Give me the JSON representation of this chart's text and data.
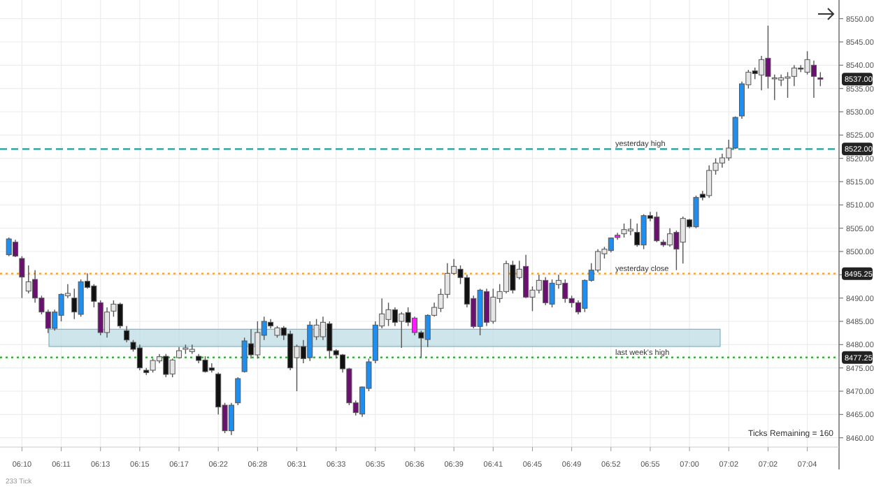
{
  "chart_data": {
    "type": "candlestick",
    "categories": [
      null,
      null,
      "06:10",
      null,
      null,
      null,
      null,
      null,
      "06:11",
      null,
      null,
      null,
      null,
      null,
      "06:13",
      null,
      null,
      null,
      null,
      null,
      "06:15",
      null,
      null,
      null,
      null,
      null,
      "06:17",
      null,
      null,
      null,
      null,
      null,
      "06:22",
      null,
      null,
      null,
      null,
      null,
      "06:28",
      null,
      null,
      null,
      null,
      null,
      "06:31",
      null,
      null,
      null,
      null,
      null,
      "06:33",
      null,
      null,
      null,
      null,
      null,
      "06:35",
      null,
      null,
      null,
      null,
      null,
      "06:36",
      null,
      null,
      null,
      null,
      null,
      "06:39",
      null,
      null,
      null,
      null,
      null,
      "06:41",
      null,
      null,
      null,
      null,
      null,
      "06:45",
      null,
      null,
      null,
      null,
      null,
      "06:49",
      null,
      null,
      null,
      null,
      null,
      "06:52",
      null,
      null,
      null,
      null,
      null,
      "06:55",
      null,
      null,
      null,
      null,
      null,
      "07:00",
      null,
      null,
      null,
      null,
      null,
      "07:02",
      null,
      null,
      null,
      null,
      null,
      "07:02",
      null,
      null,
      null,
      null,
      null,
      "07:04",
      null,
      null
    ],
    "ohlc": [
      [
        8499.3,
        8503,
        8499,
        8502.7
      ],
      [
        8502,
        8502.5,
        8498.8,
        8499
      ],
      [
        8498.5,
        8499,
        8490,
        8494.5
      ],
      [
        8491.5,
        8497,
        8491,
        8493.5
      ],
      [
        8494,
        8496,
        8489,
        8490
      ],
      [
        8490,
        8490.5,
        8486.5,
        8487
      ],
      [
        8487,
        8487.5,
        8482.5,
        8483.5
      ],
      [
        8483.5,
        8487.5,
        8483,
        8487
      ],
      [
        8486.3,
        8491,
        8485,
        8490.8
      ],
      [
        8490.5,
        8493,
        8490,
        8491
      ],
      [
        8490,
        8492,
        8485.5,
        8487
      ],
      [
        8486.5,
        8494,
        8486,
        8493.5
      ],
      [
        8493.6,
        8495.3,
        8492,
        8492.3
      ],
      [
        8492.6,
        8493,
        8488,
        8489.3
      ],
      [
        8489,
        8489.5,
        8482,
        8482.6
      ],
      [
        8482.6,
        8488,
        8481.5,
        8487
      ],
      [
        8487.2,
        8489.5,
        8486,
        8488.7
      ],
      [
        8488.7,
        8489,
        8483.5,
        8484
      ],
      [
        8483,
        8484,
        8480.5,
        8481
      ],
      [
        8480.5,
        8481,
        8478.5,
        8479
      ],
      [
        8479.3,
        8480,
        8474.5,
        8475
      ],
      [
        8474.5,
        8475,
        8473.5,
        8474
      ],
      [
        8474.5,
        8477,
        8474,
        8476.6
      ],
      [
        8476.5,
        8478,
        8476,
        8477.4
      ],
      [
        8477.5,
        8478,
        8473,
        8473.6
      ],
      [
        8473.7,
        8477,
        8473,
        8476.7
      ],
      [
        8477.2,
        8479.5,
        8477,
        8478.7
      ],
      [
        8479,
        8480,
        8478,
        8479.3
      ],
      [
        8478.5,
        8480,
        8478,
        8479
      ],
      [
        8477.5,
        8478,
        8476,
        8476.6
      ],
      [
        8476.7,
        8477.5,
        8474,
        8474.2
      ],
      [
        8475,
        8476,
        8474,
        8474.5
      ],
      [
        8473.7,
        8474,
        8465,
        8466.6
      ],
      [
        8467,
        8467.5,
        8461,
        8461.5
      ],
      [
        8461.5,
        8467.5,
        8460.6,
        8467
      ],
      [
        8467.5,
        8473,
        8467,
        8472.7
      ],
      [
        8474.2,
        8481.5,
        8474,
        8480.8
      ],
      [
        8480.2,
        8483.3,
        8477,
        8477.8
      ],
      [
        8477.8,
        8485,
        8477,
        8482.6
      ],
      [
        8482,
        8486,
        8481,
        8485
      ],
      [
        8484.8,
        8485.5,
        8483.5,
        8484
      ],
      [
        8482,
        8484,
        8481.5,
        8483.6
      ],
      [
        8483.6,
        8484,
        8481,
        8482
      ],
      [
        8482.3,
        8483,
        8474.5,
        8475
      ],
      [
        8477.2,
        8480,
        8470,
        8479.6
      ],
      [
        8479.6,
        8481,
        8476,
        8477
      ],
      [
        8477.2,
        8485,
        8476.5,
        8484.2
      ],
      [
        8481.7,
        8485.5,
        8481,
        8484.2
      ],
      [
        8481.7,
        8486,
        8481,
        8484.8
      ],
      [
        8484.5,
        8485,
        8477,
        8478.7
      ],
      [
        8478.7,
        8479,
        8477,
        8477.8
      ],
      [
        8477.8,
        8478,
        8474,
        8474.8
      ],
      [
        8474.8,
        8475,
        8467,
        8467.5
      ],
      [
        8467.5,
        8468,
        8464.8,
        8465.4
      ],
      [
        8465.1,
        8471,
        8464.5,
        8470.9
      ],
      [
        8470.6,
        8477,
        8470,
        8476.3
      ],
      [
        8476.6,
        8485,
        8476,
        8484.2
      ],
      [
        8484,
        8489.9,
        8483.5,
        8486.6
      ],
      [
        8485.4,
        8489,
        8484,
        8487.5
      ],
      [
        8487.5,
        8488,
        8484,
        8484.8
      ],
      [
        8485,
        8487,
        8479.3,
        8486.6
      ],
      [
        8486.9,
        8488,
        8484,
        8484.8
      ],
      [
        8485.7,
        8486,
        8482,
        8482.6
      ],
      [
        8482.6,
        8483,
        8477.2,
        8481.4
      ],
      [
        8481.1,
        8486.5,
        8479.5,
        8486.3
      ],
      [
        8486.3,
        8489,
        8486,
        8488
      ],
      [
        8487.8,
        8492,
        8487,
        8490.8
      ],
      [
        8490.8,
        8497.5,
        8490,
        8495.3
      ],
      [
        8495.3,
        8498.4,
        8495,
        8496.8
      ],
      [
        8496.2,
        8497,
        8493,
        8494.4
      ],
      [
        8494.4,
        8495,
        8488,
        8488.7
      ],
      [
        8489.9,
        8490.5,
        8483.5,
        8483.9
      ],
      [
        8483.9,
        8492,
        8482,
        8491.7
      ],
      [
        8491.4,
        8492,
        8484,
        8484.8
      ],
      [
        8485,
        8492,
        8484.5,
        8490.2
      ],
      [
        8489.9,
        8493,
        8489,
        8491.4
      ],
      [
        8491.4,
        8498,
        8491,
        8497.4
      ],
      [
        8497.1,
        8498,
        8491,
        8491.7
      ],
      [
        8494.4,
        8498,
        8494,
        8496.2
      ],
      [
        8496.8,
        8499.3,
        8490,
        8490.2
      ],
      [
        8490.2,
        8492.5,
        8487.2,
        8491.7
      ],
      [
        8491.7,
        8495,
        8491,
        8493.8
      ],
      [
        8493.8,
        8494.5,
        8488.5,
        8489
      ],
      [
        8488.7,
        8494,
        8488,
        8493.2
      ],
      [
        8492.9,
        8495,
        8492,
        8493.8
      ],
      [
        8493.2,
        8494,
        8489,
        8489.9
      ],
      [
        8489.9,
        8490.5,
        8488,
        8489
      ],
      [
        8489,
        8489.5,
        8486.5,
        8487
      ],
      [
        8487.8,
        8494,
        8487,
        8493.8
      ],
      [
        8493.8,
        8497.5,
        8493.5,
        8496
      ],
      [
        8496,
        8500.5,
        8495.5,
        8500
      ],
      [
        8499.5,
        8501,
        8498.5,
        8500.5
      ],
      [
        8500.2,
        8503,
        8499.8,
        8502.9
      ],
      [
        8503.5,
        8504,
        8502.5,
        8503
      ],
      [
        8503.8,
        8506,
        8503,
        8504.7
      ],
      [
        8504.4,
        8507,
        8503.5,
        8504.8
      ],
      [
        8504.1,
        8506,
        8501,
        8501.4
      ],
      [
        8501.4,
        8508,
        8500.5,
        8507.7
      ],
      [
        8507.7,
        8508.5,
        8506.5,
        8507.1
      ],
      [
        8507.4,
        8508.5,
        8502,
        8502.3
      ],
      [
        8502,
        8502.5,
        8501,
        8501.4
      ],
      [
        8501.4,
        8505,
        8501,
        8503.8
      ],
      [
        8504.1,
        8504.5,
        8496,
        8500.5
      ],
      [
        8502,
        8507.5,
        8497.4,
        8507.1
      ],
      [
        8506.8,
        8507,
        8505,
        8505.3
      ],
      [
        8505.3,
        8512,
        8505,
        8511.6
      ],
      [
        8512.3,
        8513,
        8511,
        8511.6
      ],
      [
        8512,
        8518.5,
        8511.5,
        8517.4
      ],
      [
        8517.4,
        8520,
        8516.5,
        8519
      ],
      [
        8519,
        8521,
        8518,
        8520.1
      ],
      [
        8520.1,
        8524,
        8519.5,
        8522.2
      ],
      [
        8522.2,
        8529,
        8522,
        8528.8
      ],
      [
        8529.1,
        8536.5,
        8528.5,
        8536
      ],
      [
        8535.8,
        8539,
        8535,
        8538.5
      ],
      [
        8538.8,
        8539.5,
        8537,
        8538.2
      ],
      [
        8537.9,
        8542,
        8534.6,
        8541.2
      ],
      [
        8541.5,
        8548.5,
        8535,
        8537.6
      ],
      [
        8537.2,
        8538,
        8532.5,
        8537.3
      ],
      [
        8536.8,
        8538,
        8535.5,
        8537.3
      ],
      [
        8537.2,
        8538.5,
        8533,
        8537.5
      ],
      [
        8537.6,
        8540,
        8535.5,
        8539.4
      ],
      [
        8539.4,
        8540,
        8538.5,
        8539.2
      ],
      [
        8538.5,
        8543,
        8538,
        8541.2
      ],
      [
        8540,
        8541,
        8533,
        8537.6
      ],
      [
        8537.3,
        8538.5,
        8535.5,
        8537
      ]
    ],
    "colors": [
      "#1e8ff0",
      "#6b1070",
      "#6b1070",
      "#e6e6e6",
      "#6b1070",
      "#6b1070",
      "#6b1070",
      "#1e8ff0",
      "#1e8ff0",
      "#e6e6e6",
      "#111111",
      "#1e8ff0",
      "#111111",
      "#111111",
      "#6b1070",
      "#e6e6e6",
      "#e6e6e6",
      "#111111",
      "#111111",
      "#111111",
      "#111111",
      "#111111",
      "#e6e6e6",
      "#e6e6e6",
      "#111111",
      "#e6e6e6",
      "#e6e6e6",
      "#e6e6e6",
      "#e6e6e6",
      "#111111",
      "#111111",
      "#111111",
      "#111111",
      "#6b1070",
      "#1e8ff0",
      "#1e8ff0",
      "#1e8ff0",
      "#111111",
      "#e6e6e6",
      "#1e8ff0",
      "#111111",
      "#e6e6e6",
      "#111111",
      "#111111",
      "#e6e6e6",
      "#111111",
      "#1e8ff0",
      "#e6e6e6",
      "#e6e6e6",
      "#111111",
      "#111111",
      "#111111",
      "#6b1070",
      "#6b1070",
      "#1e8ff0",
      "#1e8ff0",
      "#1e8ff0",
      "#e6e6e6",
      "#e6e6e6",
      "#111111",
      "#e6e6e6",
      "#111111",
      "#ff1aff",
      "#111111",
      "#1e8ff0",
      "#e6e6e6",
      "#e6e6e6",
      "#e6e6e6",
      "#e6e6e6",
      "#111111",
      "#111111",
      "#6b1070",
      "#1e8ff0",
      "#6b1070",
      "#e6e6e6",
      "#e6e6e6",
      "#e6e6e6",
      "#111111",
      "#e6e6e6",
      "#6b1070",
      "#e6e6e6",
      "#e6e6e6",
      "#6b1070",
      "#1e8ff0",
      "#e6e6e6",
      "#6b1070",
      "#6b1070",
      "#6b1070",
      "#1e8ff0",
      "#1e8ff0",
      "#e6e6e6",
      "#e6e6e6",
      "#1e8ff0",
      "#ff1aff",
      "#e6e6e6",
      "#e6e6e6",
      "#111111",
      "#1e8ff0",
      "#111111",
      "#6b1070",
      "#6b1070",
      "#e6e6e6",
      "#6b1070",
      "#e6e6e6",
      "#111111",
      "#1e8ff0",
      "#111111",
      "#e6e6e6",
      "#e6e6e6",
      "#e6e6e6",
      "#e6e6e6",
      "#1e8ff0",
      "#1e8ff0",
      "#e6e6e6",
      "#111111",
      "#e6e6e6",
      "#6b1070",
      "#e6e6e6",
      "#e6e6e6",
      "#e6e6e6",
      "#e6e6e6",
      "#111111",
      "#e6e6e6",
      "#6b1070",
      "#6b1070"
    ],
    "ylim": [
      8458,
      8554
    ],
    "yticks": [
      {
        "value": 8460,
        "label": "8460.00"
      },
      {
        "value": 8465,
        "label": "8465.00"
      },
      {
        "value": 8470,
        "label": "8470.00"
      },
      {
        "value": 8475,
        "label": "8475.00"
      },
      {
        "value": 8480,
        "label": "8480.00"
      },
      {
        "value": 8485,
        "label": "8485.00"
      },
      {
        "value": 8490,
        "label": "8490.00"
      },
      {
        "value": 8495,
        "label": null
      },
      {
        "value": 8500,
        "label": "8500.00"
      },
      {
        "value": 8505,
        "label": "8505.00"
      },
      {
        "value": 8510,
        "label": "8510.00"
      },
      {
        "value": 8515,
        "label": "8515.00"
      },
      {
        "value": 8520,
        "label": "8520.00"
      },
      {
        "value": 8525,
        "label": "8525.00"
      },
      {
        "value": 8530,
        "label": "8530.00"
      },
      {
        "value": 8535,
        "label": "8535.00"
      },
      {
        "value": 8540,
        "label": "8540.00"
      },
      {
        "value": 8545,
        "label": "8545.00"
      },
      {
        "value": 8550,
        "label": "8550.00"
      }
    ],
    "y2lim": [
      8458,
      8554
    ],
    "y2ticks": [
      {
        "value": 8537,
        "label": "8537.00"
      },
      {
        "value": 8522,
        "label": "8522.00"
      },
      {
        "value": 8495.25,
        "label": "8495.25"
      },
      {
        "value": 8477.25,
        "label": "8477.25"
      }
    ],
    "grid": true,
    "ref_lines": [
      {
        "axis": "y",
        "value": 8522,
        "label": "yesterday high",
        "color": "#1aa0a0",
        "line_style": "dashed"
      },
      {
        "axis": "y",
        "value": 8495.25,
        "label": "yesterday close",
        "color": "#f5a020",
        "line_style": "dotted"
      },
      {
        "axis": "y",
        "value": 8477.25,
        "label": "last week's high",
        "color": "#22aa22",
        "line_style": "dotted"
      }
    ],
    "bands": [
      {
        "axis": "y",
        "from": 8479.6,
        "to": 8483.3,
        "color": "#b9dbe3"
      }
    ],
    "annotations": [
      "Ticks Remaining = 160",
      "233 Tick"
    ]
  }
}
